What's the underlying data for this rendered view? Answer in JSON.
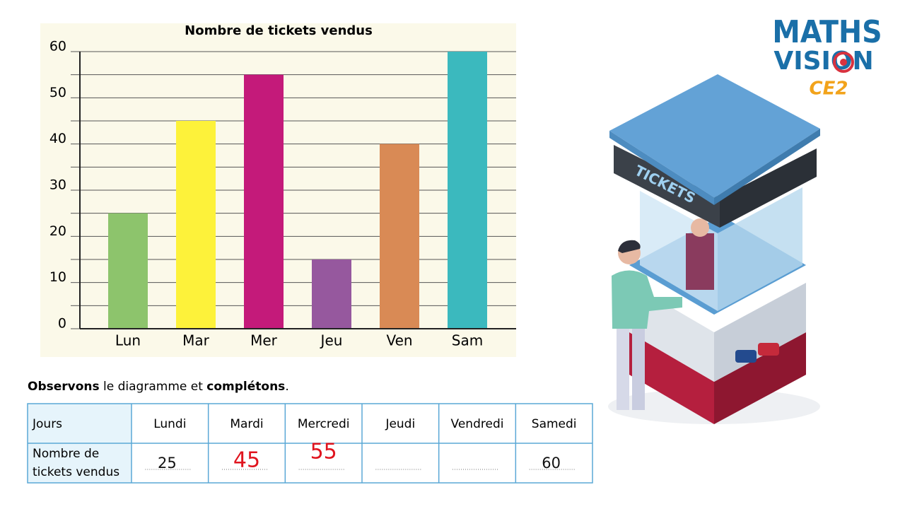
{
  "chart_data": {
    "type": "bar",
    "title": "Nombre de tickets vendus",
    "categories": [
      "Lun",
      "Mar",
      "Mer",
      "Jeu",
      "Ven",
      "Sam"
    ],
    "values": [
      25,
      45,
      55,
      15,
      40,
      60
    ],
    "colors": [
      "#8dc46c",
      "#fdf23a",
      "#c41a7a",
      "#96589e",
      "#d98a55",
      "#3bb9be"
    ],
    "ylim": [
      0,
      60
    ],
    "yticks": [
      0,
      10,
      20,
      30,
      40,
      50,
      60
    ],
    "minor_yticks": [
      5,
      15,
      25,
      35,
      45,
      55
    ],
    "grid": true
  },
  "instruction": [
    "Observons",
    " le diagramme et ",
    "complétons",
    "."
  ],
  "table": {
    "header": "Jours",
    "days": [
      "Lundi",
      "Mardi",
      "Mercredi",
      "Jeudi",
      "Vendredi",
      "Samedi"
    ],
    "row_label": [
      "Nombre de",
      "tickets vendus"
    ],
    "values": [
      25,
      45,
      55,
      null,
      null,
      60
    ],
    "handwritten": [
      false,
      true,
      true,
      false,
      false,
      false
    ]
  },
  "logo": {
    "line1": "MATHS",
    "line2": "VISION",
    "level": "CE2"
  },
  "illustration": {
    "sign": "TICKETS"
  }
}
